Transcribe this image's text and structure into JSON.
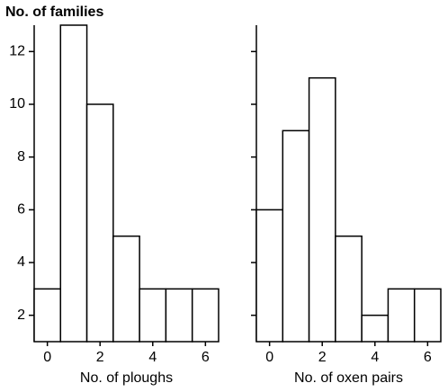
{
  "chart_data": [
    {
      "type": "histogram",
      "ylabel": "No. of families",
      "xlabel": "No. of ploughs",
      "bins": [
        -0.5,
        0.5,
        1.5,
        2.5,
        3.5,
        4.5,
        5.5,
        6.5
      ],
      "values": [
        3,
        13,
        10,
        5,
        3,
        3,
        3
      ],
      "xlim": [
        -0.5,
        6.5
      ],
      "xticks": [
        0,
        2,
        4,
        6
      ],
      "ylim": [
        1,
        13
      ],
      "yticks": [
        2,
        4,
        6,
        8,
        10,
        12
      ],
      "color": "#ffffff"
    },
    {
      "type": "histogram",
      "xlabel": "No. of oxen pairs",
      "bins": [
        -0.5,
        0.5,
        1.5,
        2.5,
        3.5,
        4.5,
        5.5,
        6.5
      ],
      "values": [
        6,
        9,
        11,
        5,
        2,
        3,
        3
      ],
      "xlim": [
        -0.5,
        6.5
      ],
      "xticks": [
        0,
        2,
        4,
        6
      ],
      "ylim": [
        1,
        13
      ],
      "color": "#ffffff"
    }
  ]
}
